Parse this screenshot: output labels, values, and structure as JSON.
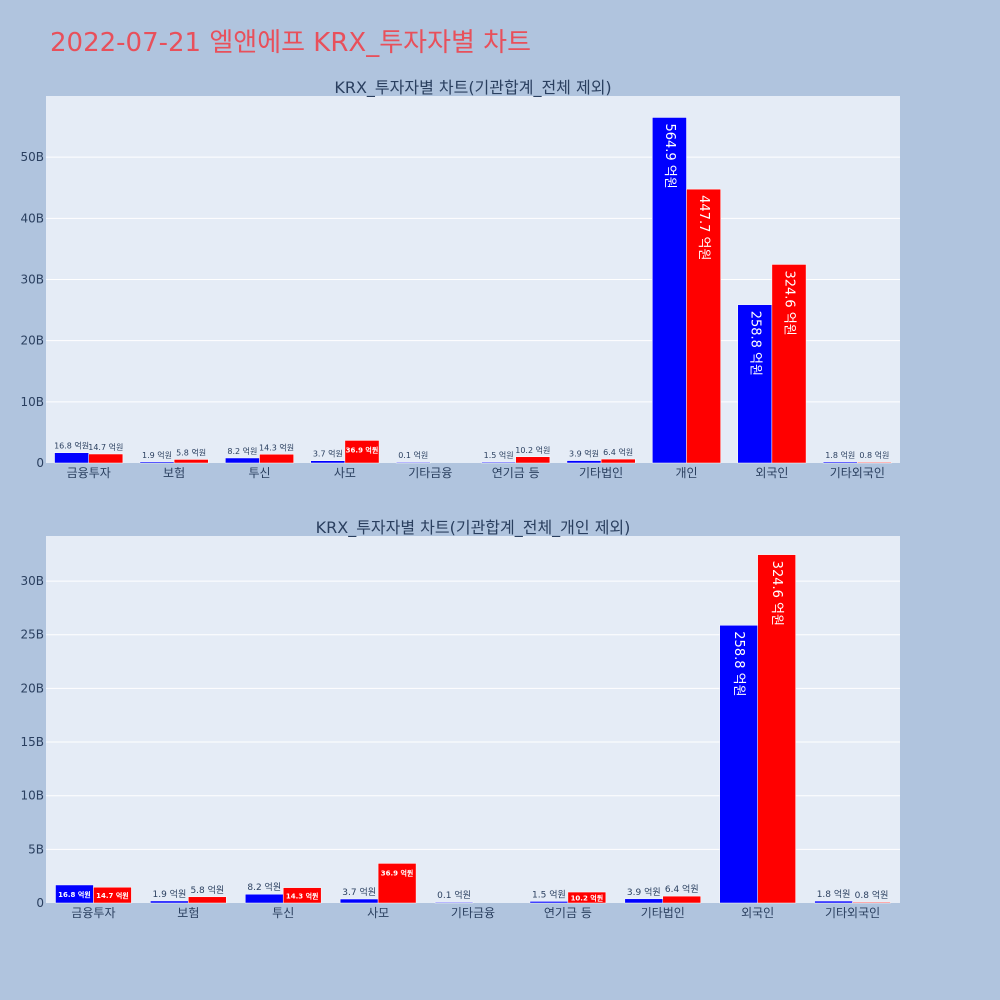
{
  "title": "2022-07-21 엘앤에프 KRX_투자자별 차트",
  "colors": {
    "background": "#b0c4de",
    "plot_bg": "#e5ecf6",
    "title": "#e8505b",
    "series_a": "#0000ff",
    "series_b": "#ff0000",
    "text": "#2a3f5f"
  },
  "chart_data": [
    {
      "type": "bar",
      "title": "KRX_투자자별 차트(기관합계_전체 제외)",
      "categories": [
        "금융투자",
        "보험",
        "투신",
        "사모",
        "기타금융",
        "연기금 등",
        "기타법인",
        "개인",
        "외국인",
        "기타외국인"
      ],
      "series": [
        {
          "color": "#0000ff",
          "values": [
            16.8,
            1.9,
            8.2,
            3.7,
            0.1,
            1.5,
            3.9,
            564.9,
            258.8,
            1.8
          ],
          "labels": [
            "16.8 억원",
            "1.9 억원",
            "8.2 억원",
            "3.7 억원",
            "0.1 억원",
            "1.5 억원",
            "3.9 억원",
            "564.9 억원",
            "258.8 억원",
            "1.8 억원"
          ]
        },
        {
          "color": "#ff0000",
          "values": [
            14.7,
            5.8,
            14.3,
            36.9,
            null,
            10.2,
            6.4,
            447.7,
            324.6,
            0.8
          ],
          "labels": [
            "14.7 억원",
            "5.8 억원",
            "14.3 억원",
            "36.9 억원",
            "",
            "10.2 억원",
            "6.4 억원",
            "447.7 억원",
            "324.6 억원",
            "0.8 억원"
          ]
        }
      ],
      "yticks": [
        0,
        100,
        200,
        300,
        400,
        500
      ],
      "ytick_labels": [
        "0",
        "10B",
        "20B",
        "30B",
        "40B",
        "50B"
      ],
      "ylim": [
        0,
        600
      ],
      "grid": true
    },
    {
      "type": "bar",
      "title": "KRX_투자자별 차트(기관합계_전체_개인 제외)",
      "categories": [
        "금융투자",
        "보험",
        "투신",
        "사모",
        "기타금융",
        "연기금 등",
        "기타법인",
        "외국인",
        "기타외국인"
      ],
      "series": [
        {
          "color": "#0000ff",
          "values": [
            16.8,
            1.9,
            8.2,
            3.7,
            0.1,
            1.5,
            3.9,
            258.8,
            1.8
          ],
          "labels": [
            "16.8 억원",
            "1.9 억원",
            "8.2 억원",
            "3.7 억원",
            "0.1 억원",
            "1.5 억원",
            "3.9 억원",
            "258.8 억원",
            "1.8 억원"
          ]
        },
        {
          "color": "#ff0000",
          "values": [
            14.7,
            5.8,
            14.3,
            36.9,
            null,
            10.2,
            6.4,
            324.6,
            0.8
          ],
          "labels": [
            "14.7 억원",
            "5.8 억원",
            "14.3 억원",
            "36.9 억원",
            "",
            "10.2 억원",
            "6.4 억원",
            "324.6 억원",
            "0.8 억원"
          ]
        }
      ],
      "yticks": [
        0,
        50,
        100,
        150,
        200,
        250,
        300
      ],
      "ytick_labels": [
        "0",
        "5B",
        "10B",
        "15B",
        "20B",
        "25B",
        "30B"
      ],
      "ylim": [
        0,
        342
      ],
      "grid": true
    }
  ]
}
